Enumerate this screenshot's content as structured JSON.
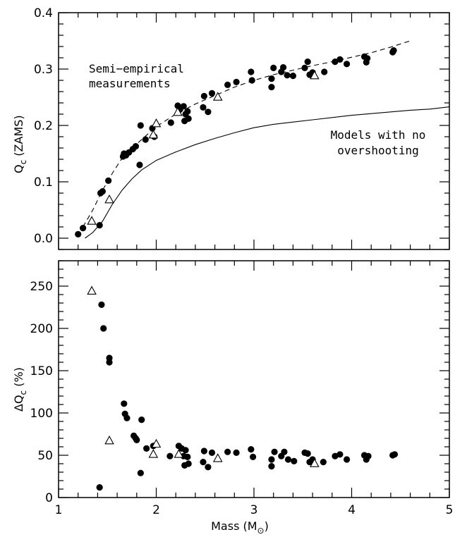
{
  "chart_data": [
    {
      "type": "scatter",
      "panel": "top",
      "xlim": [
        1,
        5
      ],
      "ylim": [
        -0.02,
        0.4
      ],
      "xticks": [
        1,
        2,
        3,
        4,
        5
      ],
      "yticks": [
        0.0,
        0.1,
        0.2,
        0.3,
        0.4
      ],
      "ytick_labels": [
        "0.0",
        "0.1",
        "0.2",
        "0.3",
        "0.4"
      ],
      "ylabel": "Qc (ZAMS)",
      "ylabel_main": "Q",
      "ylabel_sub": "c",
      "ylabel_rest": " (ZAMS)",
      "annotations": [
        {
          "lines": [
            "Semi−empirical",
            "measurements"
          ],
          "x": 1.32,
          "y": 0.3
        },
        {
          "lines": [
            "Models with no",
            "overshooting"
          ],
          "x": 4.5,
          "y": 0.185
        }
      ],
      "series": [
        {
          "marker": "filled-circle",
          "points": [
            [
              1.2,
              0.007
            ],
            [
              1.25,
              0.018
            ],
            [
              1.42,
              0.023
            ],
            [
              1.43,
              0.08
            ],
            [
              1.45,
              0.083
            ],
            [
              1.51,
              0.102
            ],
            [
              1.66,
              0.145
            ],
            [
              1.67,
              0.15
            ],
            [
              1.69,
              0.147
            ],
            [
              1.72,
              0.152
            ],
            [
              1.76,
              0.158
            ],
            [
              1.79,
              0.163
            ],
            [
              1.83,
              0.13
            ],
            [
              1.84,
              0.2
            ],
            [
              1.89,
              0.175
            ],
            [
              1.96,
              0.195
            ],
            [
              1.98,
              0.18
            ],
            [
              2.15,
              0.205
            ],
            [
              2.22,
              0.235
            ],
            [
              2.24,
              0.228
            ],
            [
              2.28,
              0.234
            ],
            [
              2.29,
              0.208
            ],
            [
              2.3,
              0.22
            ],
            [
              2.32,
              0.225
            ],
            [
              2.33,
              0.212
            ],
            [
              2.48,
              0.232
            ],
            [
              2.49,
              0.252
            ],
            [
              2.53,
              0.224
            ],
            [
              2.57,
              0.257
            ],
            [
              2.73,
              0.272
            ],
            [
              2.82,
              0.277
            ],
            [
              2.97,
              0.295
            ],
            [
              2.98,
              0.28
            ],
            [
              3.18,
              0.283
            ],
            [
              3.18,
              0.268
            ],
            [
              3.2,
              0.302
            ],
            [
              3.28,
              0.295
            ],
            [
              3.3,
              0.303
            ],
            [
              3.34,
              0.289
            ],
            [
              3.4,
              0.288
            ],
            [
              3.52,
              0.302
            ],
            [
              3.55,
              0.313
            ],
            [
              3.57,
              0.29
            ],
            [
              3.6,
              0.294
            ],
            [
              3.72,
              0.295
            ],
            [
              3.83,
              0.313
            ],
            [
              3.88,
              0.317
            ],
            [
              3.95,
              0.309
            ],
            [
              4.13,
              0.322
            ],
            [
              4.15,
              0.312
            ],
            [
              4.16,
              0.319
            ],
            [
              4.42,
              0.33
            ],
            [
              4.43,
              0.333
            ]
          ]
        },
        {
          "marker": "open-triangle",
          "points": [
            [
              1.34,
              0.03
            ],
            [
              1.52,
              0.068
            ],
            [
              1.97,
              0.183
            ],
            [
              2.0,
              0.203
            ],
            [
              2.22,
              0.223
            ],
            [
              2.63,
              0.25
            ],
            [
              3.62,
              0.288
            ]
          ]
        },
        {
          "style": "dashed-line",
          "points": [
            [
              1.25,
              0.02
            ],
            [
              1.35,
              0.05
            ],
            [
              1.45,
              0.085
            ],
            [
              1.55,
              0.115
            ],
            [
              1.65,
              0.142
            ],
            [
              1.8,
              0.167
            ],
            [
              2.0,
              0.198
            ],
            [
              2.2,
              0.22
            ],
            [
              2.4,
              0.238
            ],
            [
              2.6,
              0.253
            ],
            [
              2.8,
              0.268
            ],
            [
              3.0,
              0.28
            ],
            [
              3.2,
              0.29
            ],
            [
              3.4,
              0.298
            ],
            [
              3.6,
              0.306
            ],
            [
              3.8,
              0.313
            ],
            [
              4.0,
              0.321
            ],
            [
              4.2,
              0.329
            ],
            [
              4.4,
              0.339
            ],
            [
              4.6,
              0.35
            ]
          ]
        },
        {
          "style": "solid-line",
          "points": [
            [
              1.27,
              0.0
            ],
            [
              1.35,
              0.01
            ],
            [
              1.45,
              0.03
            ],
            [
              1.55,
              0.06
            ],
            [
              1.65,
              0.085
            ],
            [
              1.75,
              0.105
            ],
            [
              1.85,
              0.121
            ],
            [
              2.0,
              0.138
            ],
            [
              2.2,
              0.153
            ],
            [
              2.4,
              0.166
            ],
            [
              2.6,
              0.177
            ],
            [
              2.8,
              0.187
            ],
            [
              3.0,
              0.196
            ],
            [
              3.2,
              0.202
            ],
            [
              3.4,
              0.206
            ],
            [
              3.6,
              0.21
            ],
            [
              3.8,
              0.214
            ],
            [
              4.0,
              0.218
            ],
            [
              4.2,
              0.221
            ],
            [
              4.4,
              0.224
            ],
            [
              4.6,
              0.227
            ],
            [
              4.8,
              0.229
            ],
            [
              5.0,
              0.233
            ]
          ]
        }
      ]
    },
    {
      "type": "scatter",
      "panel": "bottom",
      "xlim": [
        1,
        5
      ],
      "ylim": [
        0,
        280
      ],
      "xticks": [
        1,
        2,
        3,
        4,
        5
      ],
      "xtick_labels": [
        "1",
        "2",
        "3",
        "4",
        "5"
      ],
      "yticks": [
        0,
        50,
        100,
        150,
        200,
        250
      ],
      "ytick_labels": [
        "0",
        "50",
        "100",
        "150",
        "200",
        "250"
      ],
      "xlabel": "Mass (M⊙)",
      "xlabel_main": "Mass (M",
      "xlabel_sub": "⊙",
      "xlabel_close": ")",
      "ylabel": "ΔQc (%)",
      "ylabel_main": "ΔQ",
      "ylabel_sub": "c",
      "ylabel_rest": " (%)",
      "series": [
        {
          "marker": "filled-circle",
          "points": [
            [
              1.42,
              12
            ],
            [
              1.44,
              228
            ],
            [
              1.46,
              200
            ],
            [
              1.52,
              165
            ],
            [
              1.52,
              160
            ],
            [
              1.67,
              111
            ],
            [
              1.68,
              99
            ],
            [
              1.7,
              94
            ],
            [
              1.77,
              73
            ],
            [
              1.79,
              70
            ],
            [
              1.8,
              68
            ],
            [
              1.84,
              29
            ],
            [
              1.85,
              92
            ],
            [
              1.9,
              58
            ],
            [
              1.97,
              61
            ],
            [
              2.14,
              49
            ],
            [
              2.23,
              61
            ],
            [
              2.26,
              58
            ],
            [
              2.28,
              49
            ],
            [
              2.29,
              38
            ],
            [
              2.3,
              56
            ],
            [
              2.32,
              48
            ],
            [
              2.33,
              40
            ],
            [
              2.48,
              42
            ],
            [
              2.49,
              55
            ],
            [
              2.53,
              36
            ],
            [
              2.57,
              53
            ],
            [
              2.73,
              54
            ],
            [
              2.82,
              53
            ],
            [
              2.97,
              57
            ],
            [
              2.99,
              48
            ],
            [
              3.18,
              45
            ],
            [
              3.18,
              37
            ],
            [
              3.21,
              54
            ],
            [
              3.28,
              49
            ],
            [
              3.31,
              54
            ],
            [
              3.35,
              45
            ],
            [
              3.41,
              43
            ],
            [
              3.52,
              53
            ],
            [
              3.55,
              52
            ],
            [
              3.57,
              42
            ],
            [
              3.6,
              45
            ],
            [
              3.71,
              42
            ],
            [
              3.83,
              49
            ],
            [
              3.88,
              51
            ],
            [
              3.95,
              45
            ],
            [
              4.13,
              50
            ],
            [
              4.15,
              45
            ],
            [
              4.17,
              49
            ],
            [
              4.42,
              50
            ],
            [
              4.44,
              51
            ]
          ]
        },
        {
          "marker": "open-triangle",
          "points": [
            [
              1.34,
              244
            ],
            [
              1.52,
              67
            ],
            [
              1.97,
              51
            ],
            [
              2.0,
              63
            ],
            [
              2.23,
              51
            ],
            [
              2.63,
              46
            ],
            [
              3.62,
              40
            ]
          ]
        }
      ]
    }
  ]
}
